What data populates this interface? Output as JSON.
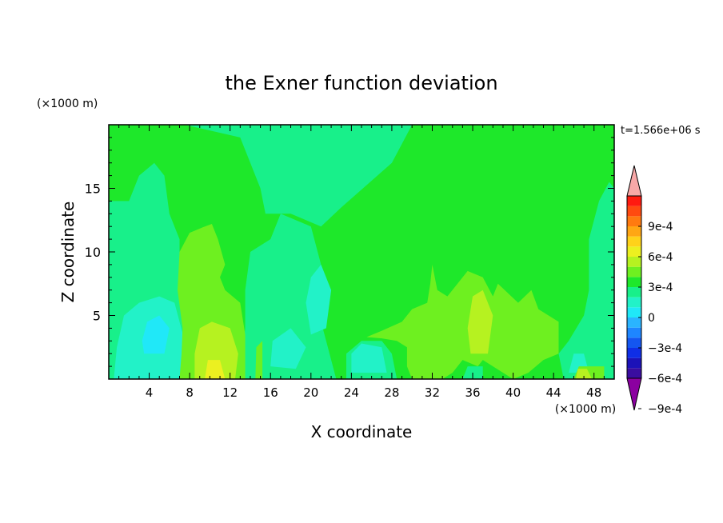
{
  "chart_data": {
    "type": "heatmap",
    "title": "the Exner function deviation",
    "xlabel": "X coordinate",
    "ylabel": "Z coordinate",
    "x_unit": "(×1000 m)",
    "y_unit": "(×1000 m)",
    "time_label": "t=1.566e+06 s",
    "xlim": [
      0,
      50
    ],
    "ylim": [
      0,
      20
    ],
    "x_ticks": [
      "4",
      "8",
      "12",
      "16",
      "20",
      "24",
      "28",
      "32",
      "36",
      "40",
      "44",
      "48"
    ],
    "y_ticks": [
      "5",
      "10",
      "15"
    ],
    "colorbar": {
      "labels": [
        "9e-4",
        "6e-4",
        "3e-4",
        "0",
        "−3e-4",
        "−6e-4",
        "−9e-4"
      ],
      "colors": [
        "#8b00a0",
        "#3a0da0",
        "#1c12b8",
        "#0f2ee6",
        "#1456f0",
        "#1e86ff",
        "#2ab4ff",
        "#20e8f8",
        "#22f2c8",
        "#18f08a",
        "#1ee82a",
        "#6ef020",
        "#b6f220",
        "#ecf020",
        "#ffd21a",
        "#ffa614",
        "#ff7a10",
        "#ff4a10",
        "#ff1a10",
        "#f8a8a8"
      ]
    },
    "regions": [
      {
        "level": "-1e-4",
        "polys": [
          [
            [
              0,
              0
            ],
            [
              8,
              0
            ],
            [
              8,
              6
            ],
            [
              7,
              9
            ],
            [
              7,
              11
            ],
            [
              6,
              13
            ],
            [
              5.5,
              16
            ],
            [
              4.5,
              17
            ],
            [
              3,
              16
            ],
            [
              2,
              14
            ],
            [
              0,
              14
            ]
          ],
          [
            [
              13,
              0
            ],
            [
              22.5,
              0
            ],
            [
              21.5,
              3
            ],
            [
              20.5,
              6
            ],
            [
              21,
              9
            ],
            [
              20,
              12
            ],
            [
              17,
              13
            ],
            [
              16,
              11
            ],
            [
              14,
              10
            ],
            [
              13.5,
              7
            ],
            [
              13.5,
              4
            ]
          ],
          [
            [
              23.5,
              0
            ],
            [
              28.5,
              0
            ],
            [
              28,
              2
            ],
            [
              27,
              3
            ],
            [
              25,
              3
            ],
            [
              23.5,
              2
            ]
          ],
          [
            [
              45,
              0
            ],
            [
              50,
              0
            ],
            [
              50,
              15
            ],
            [
              49.5,
              15.5
            ],
            [
              48.5,
              14
            ],
            [
              47.5,
              11
            ],
            [
              47.5,
              7
            ],
            [
              47,
              5
            ],
            [
              45.5,
              3
            ],
            [
              44.5,
              2
            ]
          ],
          [
            [
              7.5,
              20
            ],
            [
              30,
              20
            ],
            [
              28,
              17
            ],
            [
              23,
              13.5
            ],
            [
              21,
              12
            ],
            [
              18,
              13
            ],
            [
              15.5,
              13
            ],
            [
              15,
              15
            ],
            [
              14,
              17
            ],
            [
              13,
              19
            ]
          ],
          [
            [
              35,
              0
            ],
            [
              37,
              0
            ],
            [
              37,
              1
            ],
            [
              35.5,
              1
            ]
          ]
        ]
      },
      {
        "level": "-2e-4",
        "polys": [
          [
            [
              0.5,
              0
            ],
            [
              7,
              0
            ],
            [
              7.5,
              3
            ],
            [
              6.5,
              6
            ],
            [
              5,
              6.5
            ],
            [
              3,
              6
            ],
            [
              1.5,
              5
            ],
            [
              0.8,
              2.5
            ]
          ],
          [
            [
              16,
              1
            ],
            [
              18.5,
              0.8
            ],
            [
              19.5,
              2.5
            ],
            [
              18,
              4
            ],
            [
              16.2,
              3
            ]
          ],
          [
            [
              20,
              3.5
            ],
            [
              21.5,
              4
            ],
            [
              22,
              7
            ],
            [
              21,
              9
            ],
            [
              20,
              8
            ],
            [
              19.5,
              6
            ]
          ],
          [
            [
              24,
              0.5
            ],
            [
              27.5,
              0.5
            ],
            [
              27,
              2.5
            ],
            [
              25,
              2.8
            ],
            [
              24,
              2
            ]
          ],
          [
            [
              45.5,
              0.5
            ],
            [
              47.5,
              0.5
            ],
            [
              47,
              2
            ],
            [
              46,
              2
            ]
          ]
        ]
      },
      {
        "level": "1e-4",
        "polys": [
          [
            [
              7,
              0
            ],
            [
              13.5,
              0
            ],
            [
              13.5,
              3.5
            ],
            [
              13,
              6
            ],
            [
              11.5,
              7
            ],
            [
              11,
              8
            ],
            [
              11.5,
              9
            ],
            [
              10.8,
              11
            ],
            [
              10.2,
              12.2
            ],
            [
              9.5,
              12
            ],
            [
              8,
              11.5
            ],
            [
              7,
              10
            ],
            [
              6.8,
              7
            ],
            [
              7.3,
              4
            ],
            [
              7.2,
              2
            ]
          ],
          [
            [
              14.5,
              0
            ],
            [
              15.2,
              0
            ],
            [
              15.2,
              3
            ],
            [
              14.6,
              2.5
            ]
          ],
          [
            [
              25.5,
              3.3
            ],
            [
              27,
              3.8
            ],
            [
              29,
              4.5
            ],
            [
              30,
              5.5
            ],
            [
              31.5,
              6
            ],
            [
              31.8,
              7.5
            ],
            [
              32,
              9
            ],
            [
              32.5,
              7
            ],
            [
              33.5,
              6.5
            ],
            [
              35.5,
              8.5
            ],
            [
              37,
              8
            ],
            [
              38,
              6.5
            ],
            [
              38.5,
              7.5
            ],
            [
              40.5,
              6
            ],
            [
              41.8,
              7
            ],
            [
              42.5,
              5.5
            ],
            [
              44.5,
              4.5
            ],
            [
              44.5,
              2
            ],
            [
              43,
              1.5
            ],
            [
              41.5,
              0.5
            ],
            [
              40,
              0
            ],
            [
              39,
              0.5
            ],
            [
              37,
              1.5
            ],
            [
              36.5,
              1
            ],
            [
              35,
              1.5
            ],
            [
              34,
              0.5
            ],
            [
              33,
              0
            ],
            [
              31,
              0
            ],
            [
              30,
              0
            ],
            [
              29.5,
              1
            ],
            [
              29.5,
              2.5
            ],
            [
              28.5,
              3
            ],
            [
              27,
              3.2
            ]
          ],
          [
            [
              46,
              0
            ],
            [
              49,
              0
            ],
            [
              49,
              1
            ],
            [
              46.5,
              1
            ]
          ]
        ]
      },
      {
        "level": "2e-4",
        "polys": [
          [
            [
              8.5,
              0
            ],
            [
              12.5,
              0
            ],
            [
              12.8,
              2
            ],
            [
              12,
              4
            ],
            [
              10.2,
              4.5
            ],
            [
              9,
              4
            ],
            [
              8.5,
              2
            ]
          ],
          [
            [
              35.8,
              2
            ],
            [
              37.5,
              2
            ],
            [
              38,
              5
            ],
            [
              37,
              7
            ],
            [
              36,
              6.5
            ],
            [
              35.5,
              4
            ]
          ],
          [
            [
              46.2,
              0
            ],
            [
              47.8,
              0
            ],
            [
              47.3,
              0.8
            ],
            [
              46.4,
              0.8
            ]
          ]
        ]
      },
      {
        "level": "-3e-4",
        "polys": [
          [
            [
              3.5,
              2
            ],
            [
              5.5,
              2
            ],
            [
              6,
              4
            ],
            [
              5,
              5
            ],
            [
              3.8,
              4.5
            ],
            [
              3.3,
              3
            ]
          ]
        ]
      },
      {
        "level": "3e-4",
        "polys": [
          [
            [
              9.5,
              0
            ],
            [
              11.5,
              0
            ],
            [
              11,
              1.5
            ],
            [
              9.8,
              1.5
            ]
          ]
        ]
      }
    ]
  }
}
